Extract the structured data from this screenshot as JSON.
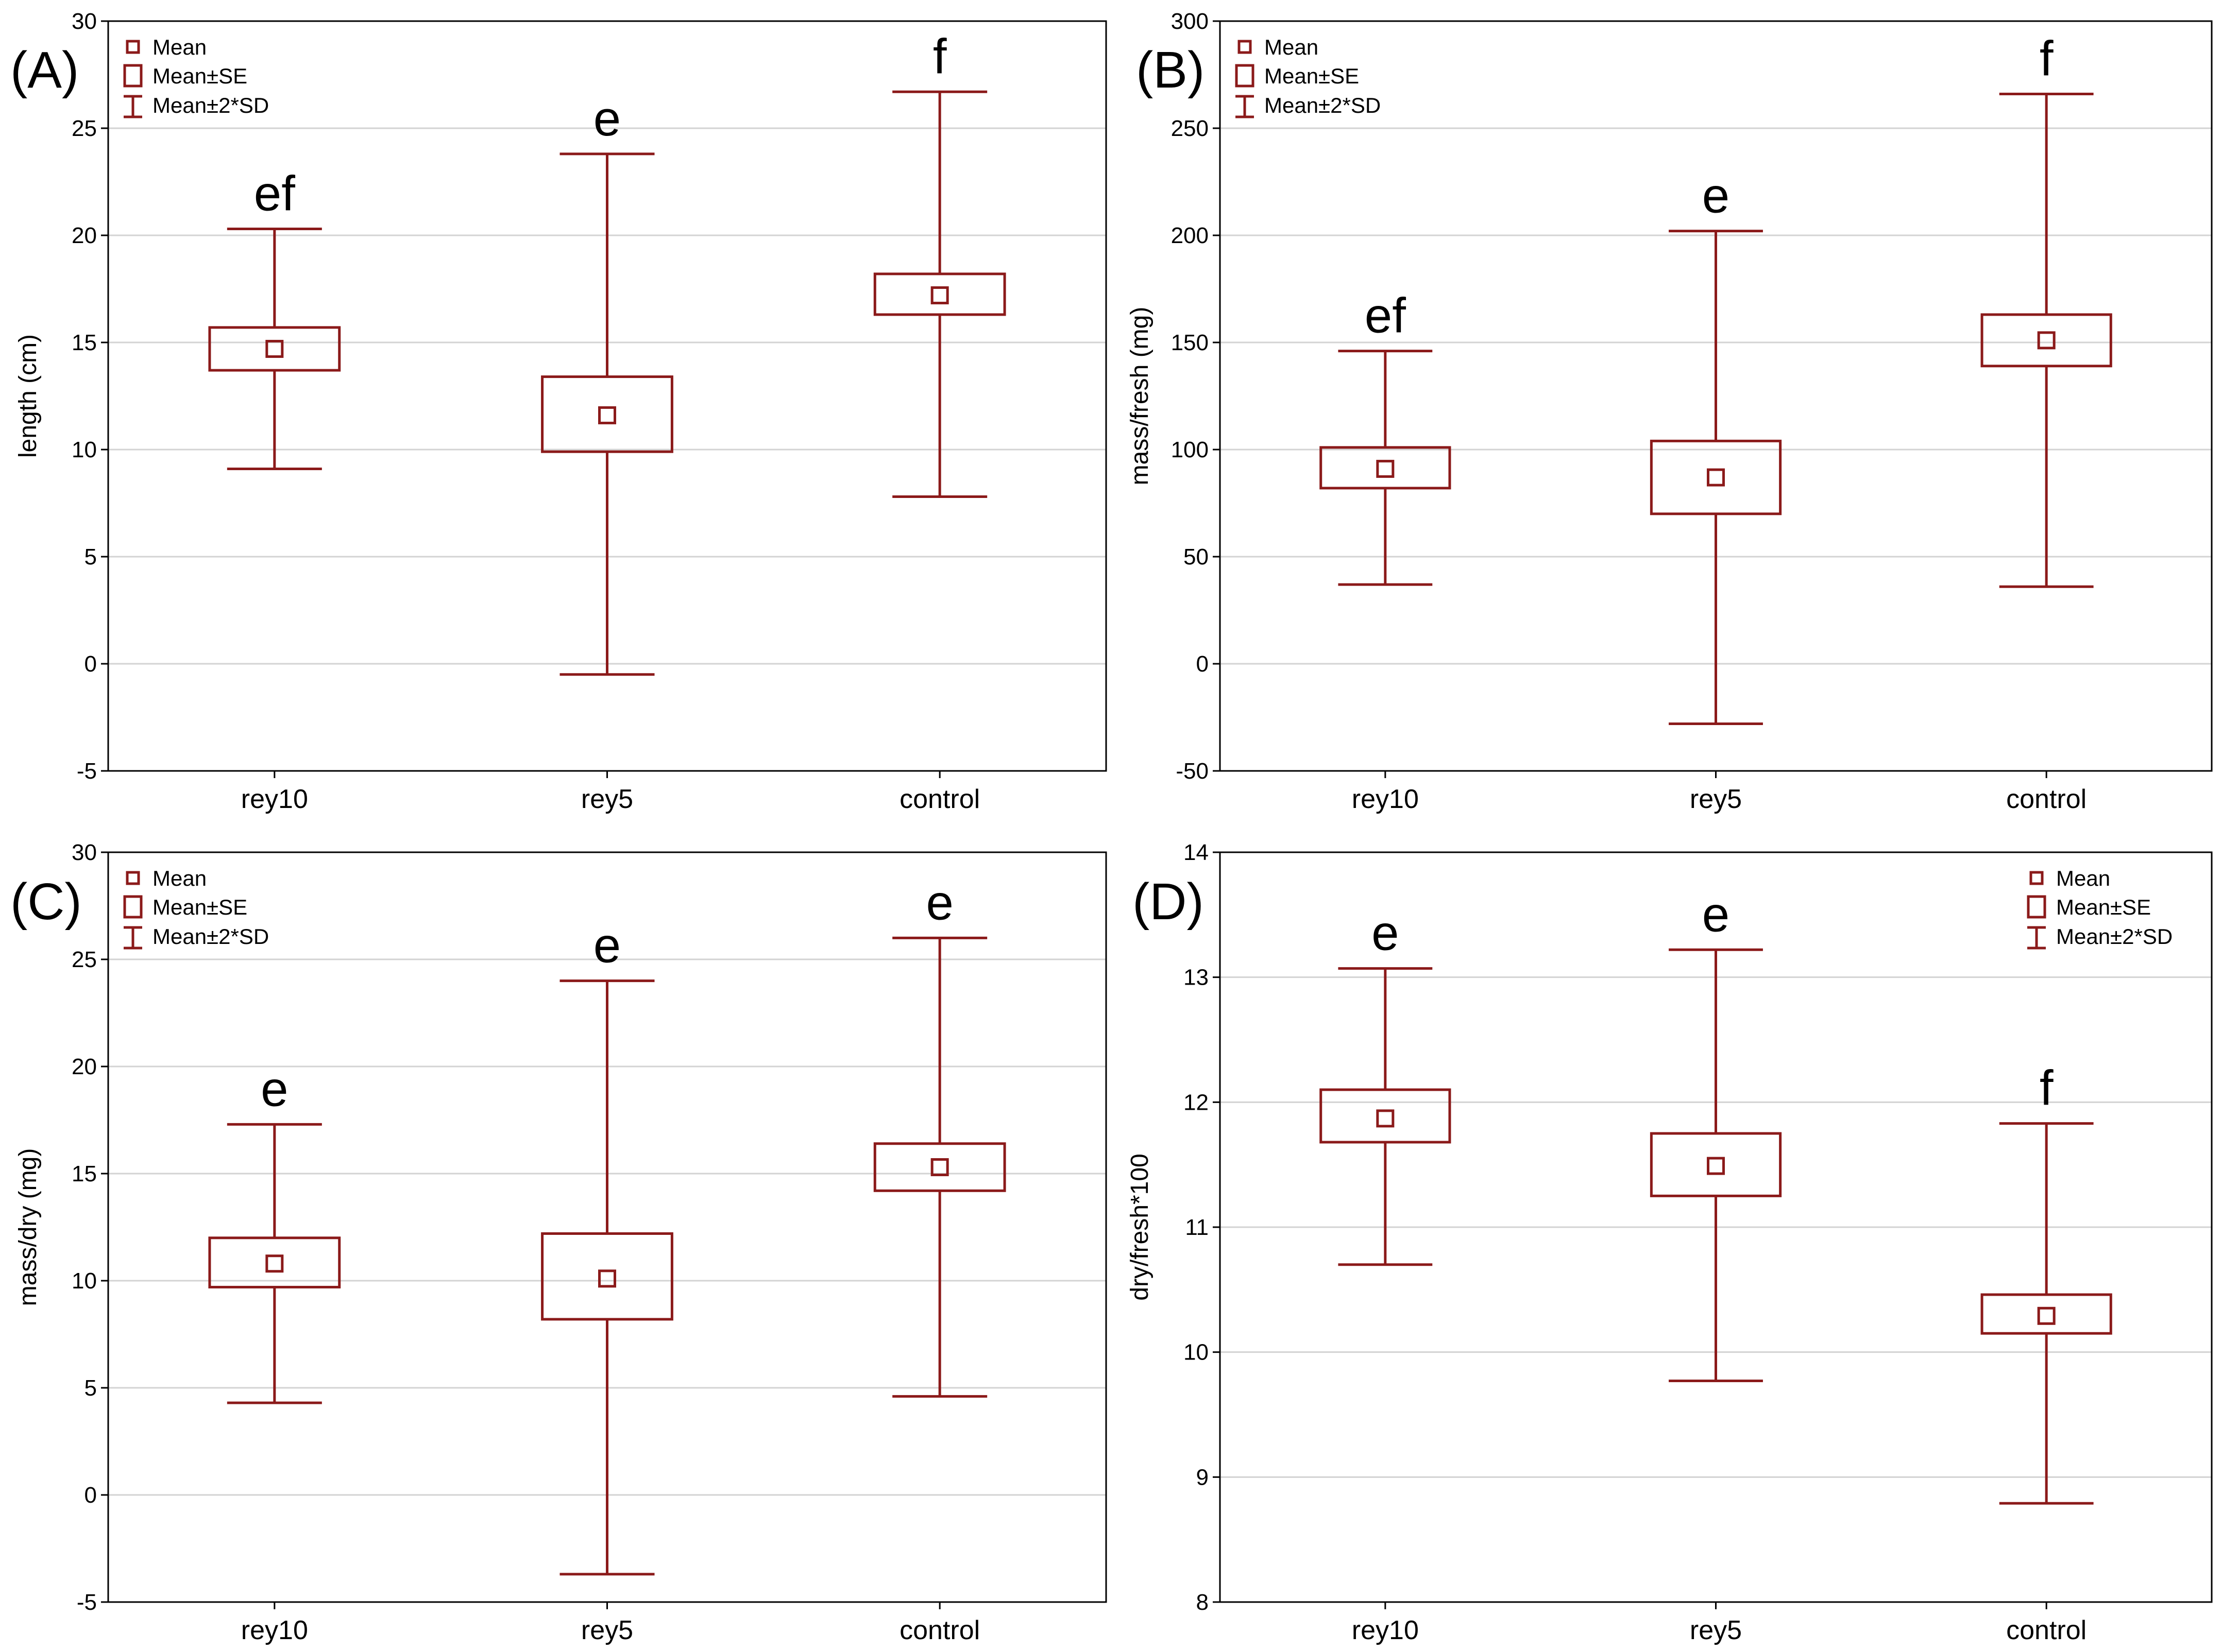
{
  "colors": {
    "series": "#8b1a1a",
    "grid": "#d3d3d3",
    "frame": "#000000",
    "text": "#000000"
  },
  "legend": {
    "mean": "Mean",
    "se": "Mean±SE",
    "sd": "Mean±2*SD"
  },
  "chart_data": [
    {
      "type": "box",
      "panel_label": "(A)",
      "ylabel": "length (cm)",
      "ylim": [
        -5,
        30
      ],
      "yticks": [
        -5,
        0,
        5,
        10,
        15,
        20,
        25,
        30
      ],
      "categories": [
        "rey10",
        "rey5",
        "control"
      ],
      "mean": [
        14.7,
        11.6,
        17.2
      ],
      "se_low": [
        13.7,
        9.9,
        16.3
      ],
      "se_high": [
        15.7,
        13.4,
        18.2
      ],
      "sd2_low": [
        9.1,
        -0.5,
        7.8
      ],
      "sd2_high": [
        20.3,
        23.8,
        26.7
      ],
      "letters": [
        "ef",
        "e",
        "f"
      ],
      "legend_position": "top-left"
    },
    {
      "type": "box",
      "panel_label": "(B)",
      "ylabel": "mass/fresh (mg)",
      "ylim": [
        -50,
        300
      ],
      "yticks": [
        -50,
        0,
        50,
        100,
        150,
        200,
        250,
        300
      ],
      "categories": [
        "rey10",
        "rey5",
        "control"
      ],
      "mean": [
        91,
        87,
        151
      ],
      "se_low": [
        82,
        70,
        139
      ],
      "se_high": [
        101,
        104,
        163
      ],
      "sd2_low": [
        37,
        -28,
        36
      ],
      "sd2_high": [
        146,
        202,
        266
      ],
      "letters": [
        "ef",
        "e",
        "f"
      ],
      "legend_position": "top-left"
    },
    {
      "type": "box",
      "panel_label": "(C)",
      "ylabel": "mass/dry (mg)",
      "ylim": [
        -5,
        30
      ],
      "yticks": [
        -5,
        0,
        5,
        10,
        15,
        20,
        25,
        30
      ],
      "categories": [
        "rey10",
        "rey5",
        "control"
      ],
      "mean": [
        10.8,
        10.1,
        15.3
      ],
      "se_low": [
        9.7,
        8.2,
        14.2
      ],
      "se_high": [
        12.0,
        12.2,
        16.4
      ],
      "sd2_low": [
        4.3,
        -3.7,
        4.6
      ],
      "sd2_high": [
        17.3,
        24.0,
        26.0
      ],
      "letters": [
        "e",
        "e",
        "e"
      ],
      "legend_position": "top-left"
    },
    {
      "type": "box",
      "panel_label": "(D)",
      "ylabel": "dry/fresh*100",
      "ylim": [
        8,
        14
      ],
      "yticks": [
        8,
        9,
        10,
        11,
        12,
        13,
        14
      ],
      "categories": [
        "rey10",
        "rey5",
        "control"
      ],
      "mean": [
        11.87,
        11.49,
        10.29
      ],
      "se_low": [
        11.68,
        11.25,
        10.15
      ],
      "se_high": [
        12.1,
        11.75,
        10.46
      ],
      "sd2_low": [
        10.7,
        9.77,
        8.79
      ],
      "sd2_high": [
        13.07,
        13.22,
        11.83
      ],
      "letters": [
        "e",
        "e",
        "f"
      ],
      "legend_position": "top-right"
    }
  ]
}
